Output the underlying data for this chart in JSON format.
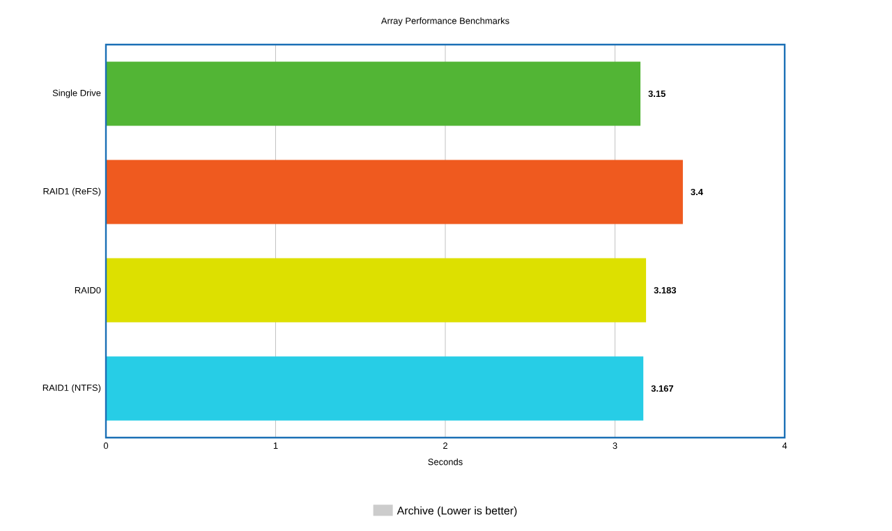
{
  "chart_data": {
    "type": "bar",
    "orientation": "horizontal",
    "title": "Array Performance Benchmarks",
    "xlabel": "Seconds",
    "categories": [
      "Single Drive",
      "RAID1 (ReFS)",
      "RAID0",
      "RAID1 (NTFS)"
    ],
    "series": [
      {
        "name": "Archive (Lower is better)",
        "color": "#cccccc",
        "colors": [
          "#52b535",
          "#ef5a1f",
          "#dde000",
          "#27cde6"
        ],
        "values": [
          3.15,
          3.4,
          3.183,
          3.167
        ]
      }
    ],
    "xlim": [
      0,
      4
    ],
    "xticks": [
      0,
      1,
      2,
      3,
      4
    ],
    "grid": "x",
    "legend": "bottom",
    "data_labels": true
  }
}
